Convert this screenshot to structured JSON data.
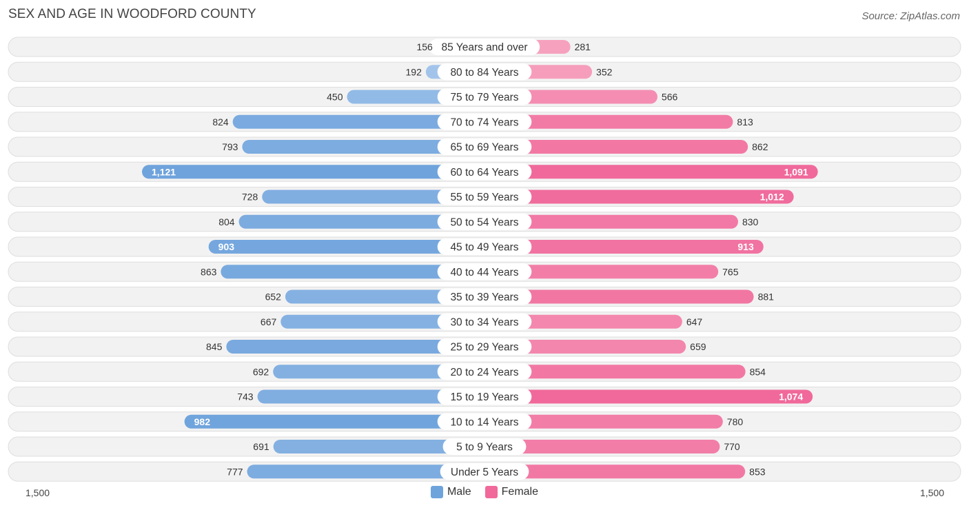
{
  "title": "SEX AND AGE IN WOODFORD COUNTY",
  "source": "Source: ZipAtlas.com",
  "colors": {
    "male": "#6fa3dc",
    "male_light": "#a9c8ec",
    "female": "#f0699a",
    "female_light": "#f7a8c3"
  },
  "legend": {
    "male": "Male",
    "female": "Female"
  },
  "axis": {
    "left_label": "1,500",
    "right_label": "1,500"
  },
  "chart_data": {
    "type": "bar",
    "orientation": "horizontal-diverging",
    "xlim": [
      -1500,
      1500
    ],
    "categories": [
      "85 Years and over",
      "80 to 84 Years",
      "75 to 79 Years",
      "70 to 74 Years",
      "65 to 69 Years",
      "60 to 64 Years",
      "55 to 59 Years",
      "50 to 54 Years",
      "45 to 49 Years",
      "40 to 44 Years",
      "35 to 39 Years",
      "30 to 34 Years",
      "25 to 29 Years",
      "20 to 24 Years",
      "15 to 19 Years",
      "10 to 14 Years",
      "5 to 9 Years",
      "Under 5 Years"
    ],
    "series": [
      {
        "name": "Male",
        "values": [
          156,
          192,
          450,
          824,
          793,
          1121,
          728,
          804,
          903,
          863,
          652,
          667,
          845,
          692,
          743,
          982,
          691,
          777
        ]
      },
      {
        "name": "Female",
        "values": [
          281,
          352,
          566,
          813,
          862,
          1091,
          1012,
          830,
          913,
          765,
          881,
          647,
          659,
          854,
          1074,
          780,
          770,
          853
        ]
      }
    ],
    "legend_position": "bottom-center"
  }
}
